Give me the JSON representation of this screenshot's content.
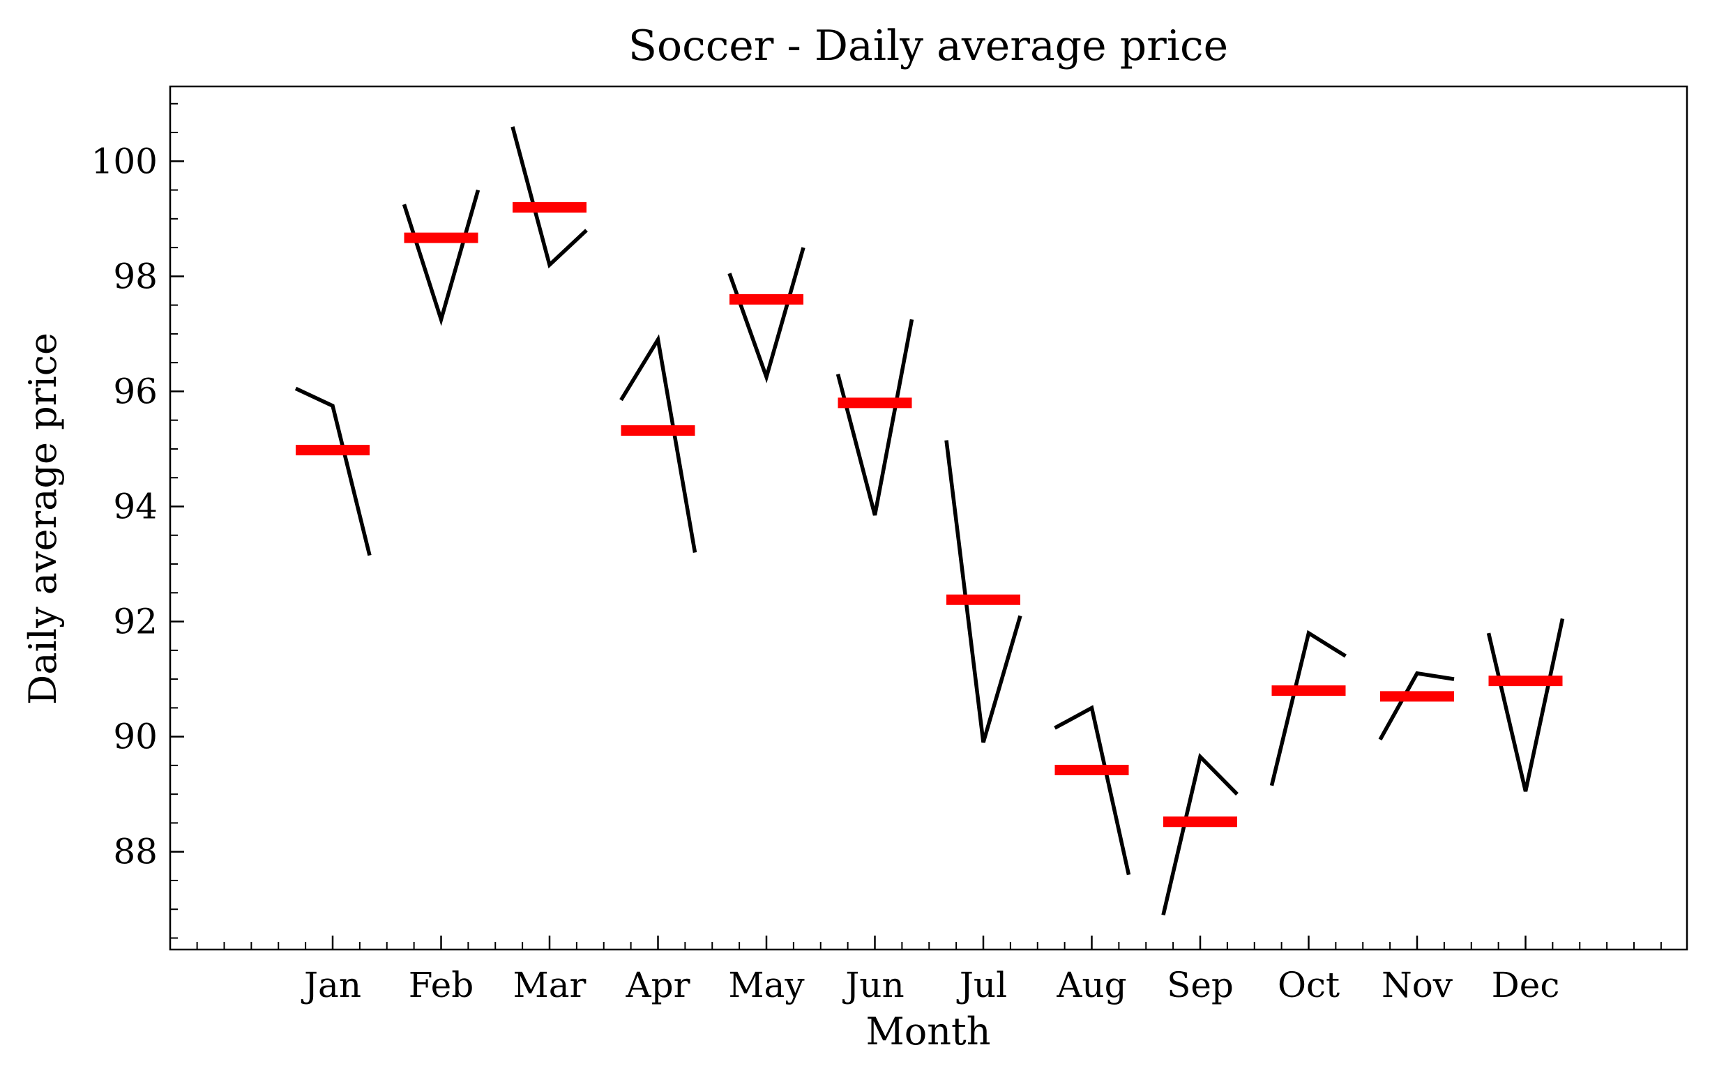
{
  "chart_data": {
    "type": "line",
    "title": "Soccer - Daily average price",
    "xlabel": "Month",
    "ylabel": "Daily average price",
    "categories": [
      "Jan",
      "Feb",
      "Mar",
      "Apr",
      "May",
      "Jun",
      "Jul",
      "Aug",
      "Sep",
      "Oct",
      "Nov",
      "Dec"
    ],
    "ylim": [
      86.3,
      101.3
    ],
    "yticks": [
      88,
      90,
      92,
      94,
      96,
      98,
      100
    ],
    "subseries": [
      [
        96.05,
        95.75,
        93.15
      ],
      [
        99.25,
        97.25,
        99.5
      ],
      [
        100.6,
        98.2,
        98.8
      ],
      [
        95.85,
        96.9,
        93.2
      ],
      [
        98.05,
        96.25,
        98.5
      ],
      [
        96.3,
        93.85,
        97.25
      ],
      [
        95.15,
        89.9,
        92.1
      ],
      [
        90.15,
        90.5,
        87.6
      ],
      [
        86.9,
        89.65,
        89.0
      ],
      [
        89.15,
        91.8,
        91.4
      ],
      [
        89.95,
        91.1,
        91.0
      ],
      [
        91.8,
        89.05,
        92.05
      ]
    ],
    "means": [
      94.98,
      98.67,
      99.2,
      95.32,
      97.6,
      95.8,
      92.38,
      89.42,
      88.52,
      90.8,
      90.7,
      90.97
    ],
    "colors": {
      "line": "#000000",
      "mean": "#ff0000",
      "axis": "#000000"
    },
    "grid": false
  }
}
